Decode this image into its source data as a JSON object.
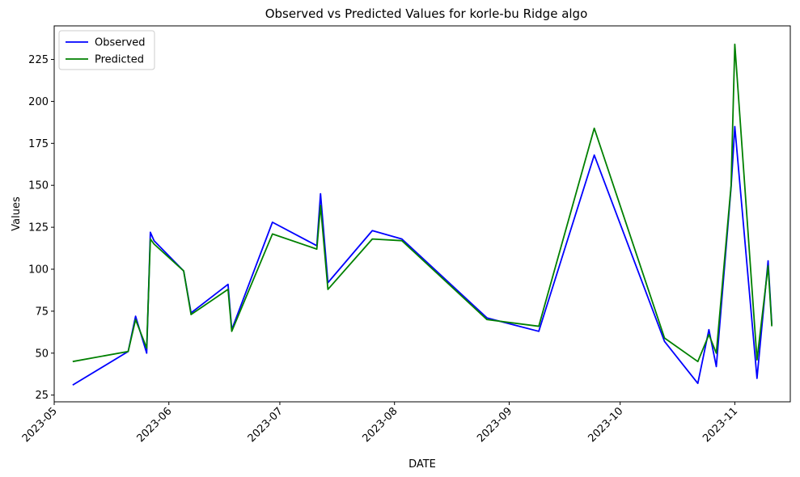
{
  "chart_data": {
    "type": "line",
    "title": "Observed vs Predicted Values for korle-bu Ridge algo",
    "xlabel": "DATE",
    "ylabel": "Values",
    "x_type": "date",
    "xlim": [
      "2023-05-01",
      "2023-11-16"
    ],
    "ylim": [
      21,
      245
    ],
    "x_ticks": [
      "2023-05",
      "2023-06",
      "2023-07",
      "2023-08",
      "2023-09",
      "2023-10",
      "2023-11"
    ],
    "y_ticks": [
      25,
      50,
      75,
      100,
      125,
      150,
      175,
      200,
      225
    ],
    "grid": false,
    "legend_position": "top-left",
    "series": [
      {
        "name": "Observed",
        "color": "#0000ff",
        "points": [
          [
            "2023-05-06",
            31
          ],
          [
            "2023-05-21",
            51
          ],
          [
            "2023-05-23",
            72
          ],
          [
            "2023-05-26",
            50
          ],
          [
            "2023-05-27",
            122
          ],
          [
            "2023-05-28",
            117
          ],
          [
            "2023-06-05",
            99
          ],
          [
            "2023-06-07",
            74
          ],
          [
            "2023-06-17",
            91
          ],
          [
            "2023-06-18",
            64
          ],
          [
            "2023-06-29",
            128
          ],
          [
            "2023-07-11",
            114
          ],
          [
            "2023-07-12",
            145
          ],
          [
            "2023-07-14",
            92
          ],
          [
            "2023-07-26",
            123
          ],
          [
            "2023-08-03",
            118
          ],
          [
            "2023-08-26",
            71
          ],
          [
            "2023-09-09",
            63
          ],
          [
            "2023-09-24",
            168
          ],
          [
            "2023-10-13",
            57
          ],
          [
            "2023-10-22",
            32
          ],
          [
            "2023-10-25",
            64
          ],
          [
            "2023-10-27",
            42
          ],
          [
            "2023-10-31",
            149
          ],
          [
            "2023-11-01",
            185
          ],
          [
            "2023-11-07",
            35
          ],
          [
            "2023-11-10",
            105
          ],
          [
            "2023-11-11",
            67
          ]
        ]
      },
      {
        "name": "Predicted",
        "color": "#008000",
        "points": [
          [
            "2023-05-06",
            45
          ],
          [
            "2023-05-21",
            51
          ],
          [
            "2023-05-23",
            70
          ],
          [
            "2023-05-26",
            53
          ],
          [
            "2023-05-27",
            118
          ],
          [
            "2023-05-28",
            115
          ],
          [
            "2023-06-05",
            99
          ],
          [
            "2023-06-07",
            73
          ],
          [
            "2023-06-17",
            88
          ],
          [
            "2023-06-18",
            63
          ],
          [
            "2023-06-29",
            121
          ],
          [
            "2023-07-11",
            112
          ],
          [
            "2023-07-12",
            138
          ],
          [
            "2023-07-14",
            88
          ],
          [
            "2023-07-26",
            118
          ],
          [
            "2023-08-03",
            117
          ],
          [
            "2023-08-26",
            70
          ],
          [
            "2023-09-09",
            66
          ],
          [
            "2023-09-24",
            184
          ],
          [
            "2023-10-13",
            59
          ],
          [
            "2023-10-22",
            45
          ],
          [
            "2023-10-25",
            61
          ],
          [
            "2023-10-27",
            50
          ],
          [
            "2023-10-31",
            150
          ],
          [
            "2023-11-01",
            234
          ],
          [
            "2023-11-07",
            46
          ],
          [
            "2023-11-10",
            102
          ],
          [
            "2023-11-11",
            66
          ]
        ]
      }
    ]
  }
}
